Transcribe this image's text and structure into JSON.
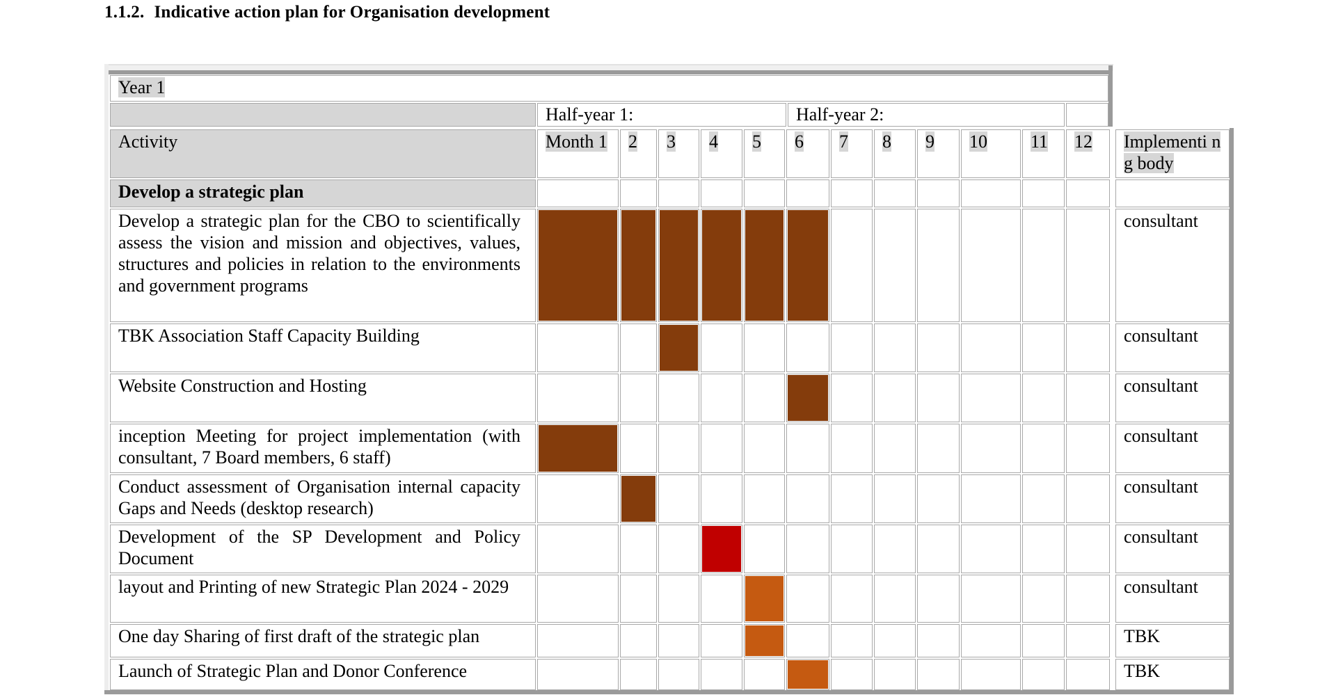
{
  "heading": {
    "number": "1.1.2.",
    "title": "Indicative action plan for Organisation development"
  },
  "table": {
    "year_label": "Year 1",
    "half_year_1": "Half-year 1:",
    "half_year_2": "Half-year 2:",
    "activity_header": "Activity",
    "month_headers": [
      "Month 1",
      "2",
      "3",
      "4",
      "5",
      "6",
      "7",
      "8",
      "9",
      "10",
      "11",
      "12"
    ],
    "impl_header": "Implementi ng body",
    "section_title": "Develop a strategic plan",
    "colors": {
      "brown": "#843c0c",
      "red": "#c00000",
      "orange": "#c55a11"
    },
    "rows": [
      {
        "activity": "Develop a strategic plan for the CBO to scientifically assess the vision and mission and objectives, values, structures and policies in relation to the environments and government programs",
        "body": "consultant",
        "months": [
          1,
          2,
          3,
          4,
          5,
          6
        ],
        "color": "brown"
      },
      {
        "activity": "TBK Association Staff Capacity Building",
        "body": "consultant",
        "months": [
          3
        ],
        "color": "brown"
      },
      {
        "activity": "Website Construction and Hosting",
        "body": "consultant",
        "months": [
          6
        ],
        "color": "brown"
      },
      {
        "activity": "inception Meeting for project implementation (with consultant, 7 Board members, 6 staff)",
        "body": "consultant",
        "months": [
          1
        ],
        "color": "brown"
      },
      {
        "activity": "Conduct assessment of Organisation internal capacity Gaps and Needs (desktop research)",
        "body": "consultant",
        "months": [
          2
        ],
        "color": "brown"
      },
      {
        "activity": "Development of the SP Development and Policy Document",
        "body": "consultant",
        "months": [
          4
        ],
        "color": "red"
      },
      {
        "activity": "layout and Printing of new Strategic Plan 2024 - 2029",
        "body": "consultant",
        "months": [
          5
        ],
        "color": "orange"
      },
      {
        "activity": "One day Sharing of first draft of the strategic plan",
        "body": "TBK",
        "months": [
          5
        ],
        "color": "orange"
      },
      {
        "activity": "Launch of Strategic Plan and Donor Conference",
        "body": "TBK",
        "months": [
          6
        ],
        "color": "orange"
      }
    ]
  }
}
